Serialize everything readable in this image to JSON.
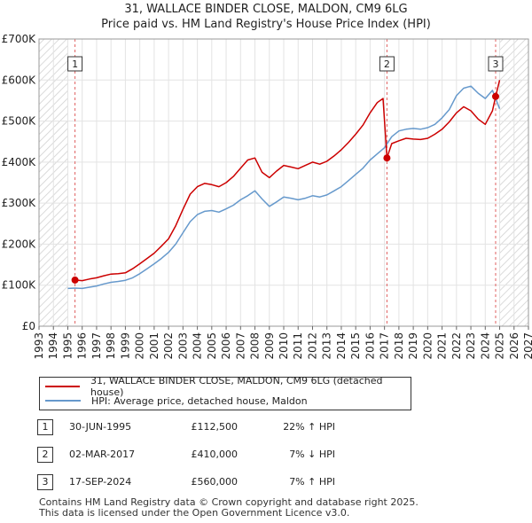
{
  "chart_data": {
    "type": "line",
    "title": "31, WALLACE BINDER CLOSE, MALDON, CM9 6LG",
    "subtitle": "Price paid vs. HM Land Registry's House Price Index (HPI)",
    "xlabel": "",
    "ylabel": "",
    "xlim": [
      1993,
      2027
    ],
    "ylim": [
      0,
      700000
    ],
    "x_ticks": [
      "1993",
      "1994",
      "1995",
      "1996",
      "1997",
      "1998",
      "1999",
      "2000",
      "2001",
      "2002",
      "2003",
      "2004",
      "2005",
      "2006",
      "2007",
      "2008",
      "2009",
      "2010",
      "2011",
      "2012",
      "2013",
      "2014",
      "2015",
      "2016",
      "2017",
      "2018",
      "2019",
      "2020",
      "2021",
      "2022",
      "2023",
      "2024",
      "2025",
      "2026",
      "2027"
    ],
    "y_ticks": [
      {
        "value": 0,
        "label": "£0"
      },
      {
        "value": 100000,
        "label": "£100K"
      },
      {
        "value": 200000,
        "label": "£200K"
      },
      {
        "value": 300000,
        "label": "£300K"
      },
      {
        "value": 400000,
        "label": "£400K"
      },
      {
        "value": 500000,
        "label": "£500K"
      },
      {
        "value": 600000,
        "label": "£600K"
      },
      {
        "value": 700000,
        "label": "£700K"
      }
    ],
    "grid": true,
    "hatched_ranges": [
      [
        1993,
        1995.0
      ],
      [
        2025.0,
        2027
      ]
    ],
    "series": [
      {
        "name": "31, WALLACE BINDER CLOSE, MALDON, CM9 6LG (detached house)",
        "color": "#cc0000",
        "x": [
          1995.5,
          1996.0,
          1996.5,
          1997.0,
          1997.5,
          1998.0,
          1998.5,
          1999.0,
          1999.5,
          2000.0,
          2000.5,
          2001.0,
          2001.5,
          2002.0,
          2002.5,
          2003.0,
          2003.5,
          2004.0,
          2004.5,
          2005.0,
          2005.5,
          2006.0,
          2006.5,
          2007.0,
          2007.5,
          2008.0,
          2008.5,
          2009.0,
          2009.5,
          2010.0,
          2010.5,
          2011.0,
          2011.5,
          2012.0,
          2012.5,
          2013.0,
          2013.5,
          2014.0,
          2014.5,
          2015.0,
          2015.5,
          2016.0,
          2016.5,
          2016.9,
          2017.17,
          2017.5,
          2018.0,
          2018.5,
          2019.0,
          2019.5,
          2020.0,
          2020.5,
          2021.0,
          2021.5,
          2022.0,
          2022.5,
          2023.0,
          2023.5,
          2024.0,
          2024.5,
          2024.72,
          2025.0
        ],
        "values": [
          112500,
          111000,
          115000,
          118000,
          123000,
          127000,
          128000,
          130000,
          140000,
          152000,
          165000,
          178000,
          195000,
          213000,
          245000,
          285000,
          322000,
          340000,
          348000,
          345000,
          340000,
          350000,
          365000,
          385000,
          405000,
          410000,
          375000,
          362000,
          378000,
          392000,
          388000,
          384000,
          392000,
          400000,
          395000,
          402000,
          415000,
          430000,
          448000,
          468000,
          490000,
          520000,
          545000,
          555000,
          410000,
          445000,
          452000,
          458000,
          456000,
          455000,
          458000,
          468000,
          480000,
          498000,
          520000,
          535000,
          525000,
          505000,
          492000,
          525000,
          560000,
          600000
        ]
      },
      {
        "name": "HPI: Average price, detached house, Maldon",
        "color": "#6699cc",
        "x": [
          1995.0,
          1995.5,
          1996.0,
          1996.5,
          1997.0,
          1997.5,
          1998.0,
          1998.5,
          1999.0,
          1999.5,
          2000.0,
          2000.5,
          2001.0,
          2001.5,
          2002.0,
          2002.5,
          2003.0,
          2003.5,
          2004.0,
          2004.5,
          2005.0,
          2005.5,
          2006.0,
          2006.5,
          2007.0,
          2007.5,
          2008.0,
          2008.5,
          2009.0,
          2009.5,
          2010.0,
          2010.5,
          2011.0,
          2011.5,
          2012.0,
          2012.5,
          2013.0,
          2013.5,
          2014.0,
          2014.5,
          2015.0,
          2015.5,
          2016.0,
          2016.5,
          2017.0,
          2017.5,
          2018.0,
          2018.5,
          2019.0,
          2019.5,
          2020.0,
          2020.5,
          2021.0,
          2021.5,
          2022.0,
          2022.5,
          2023.0,
          2023.5,
          2024.0,
          2024.5,
          2025.0
        ],
        "values": [
          92000,
          93000,
          92000,
          95000,
          98000,
          103000,
          107000,
          109000,
          112000,
          118000,
          128000,
          140000,
          152000,
          165000,
          180000,
          200000,
          228000,
          255000,
          272000,
          280000,
          282000,
          278000,
          286000,
          295000,
          308000,
          318000,
          330000,
          310000,
          292000,
          303000,
          315000,
          312000,
          308000,
          312000,
          318000,
          315000,
          320000,
          330000,
          340000,
          355000,
          370000,
          385000,
          405000,
          420000,
          435000,
          462000,
          476000,
          480000,
          482000,
          480000,
          484000,
          492000,
          508000,
          528000,
          562000,
          580000,
          585000,
          568000,
          555000,
          575000,
          530000
        ]
      }
    ],
    "sales": [
      {
        "label": "1",
        "x": 1995.5,
        "value": 112500
      },
      {
        "label": "2",
        "x": 2017.17,
        "value": 410000
      },
      {
        "label": "3",
        "x": 2024.72,
        "value": 560000
      }
    ]
  },
  "legend": {
    "property_label": "31, WALLACE BINDER CLOSE, MALDON, CM9 6LG (detached house)",
    "hpi_label": "HPI: Average price, detached house, Maldon"
  },
  "sales_table": [
    {
      "num": "1",
      "date": "30-JUN-1995",
      "price": "£112,500",
      "hpi": "22% ↑ HPI"
    },
    {
      "num": "2",
      "date": "02-MAR-2017",
      "price": "£410,000",
      "hpi": "7% ↓ HPI"
    },
    {
      "num": "3",
      "date": "17-SEP-2024",
      "price": "£560,000",
      "hpi": "7% ↑ HPI"
    }
  ],
  "footer": {
    "line1": "Contains HM Land Registry data © Crown copyright and database right 2025.",
    "line2": "This data is licensed under the Open Government Licence v3.0."
  }
}
